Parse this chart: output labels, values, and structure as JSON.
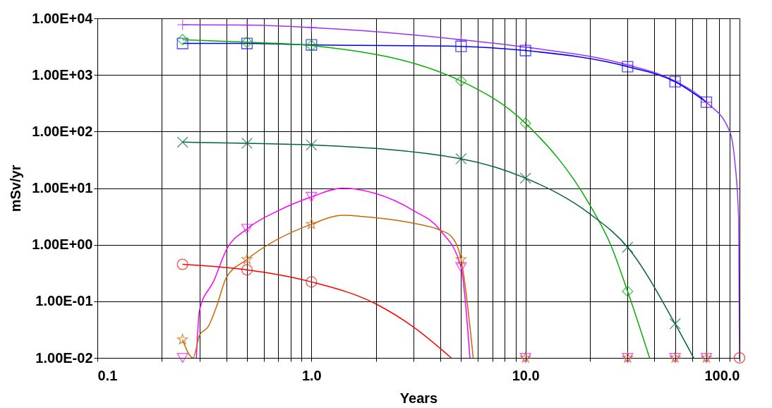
{
  "chart_data": {
    "type": "line",
    "xlabel": "Years",
    "ylabel": "mSv/yr",
    "log": "xy",
    "grid": true,
    "xlim": [
      0.1,
      100
    ],
    "ylim": [
      0.01,
      10000
    ],
    "xticks": [
      0.1,
      {
        "value": 0.2,
        "label": null
      },
      {
        "value": 0.3,
        "label": null
      },
      {
        "value": 0.4,
        "label": null
      },
      {
        "value": 0.5,
        "label": null
      },
      {
        "value": 0.6,
        "label": null
      },
      {
        "value": 0.7,
        "label": null
      },
      {
        "value": 0.8,
        "label": null
      },
      {
        "value": 0.9,
        "label": null
      },
      {
        "value": 1,
        "label": "1.0"
      },
      {
        "value": 2,
        "label": null
      },
      {
        "value": 3,
        "label": null
      },
      {
        "value": 4,
        "label": null
      },
      {
        "value": 5,
        "label": null
      },
      {
        "value": 6,
        "label": null
      },
      {
        "value": 7,
        "label": null
      },
      {
        "value": 8,
        "label": null
      },
      {
        "value": 9,
        "label": null
      },
      {
        "value": 10,
        "label": "10.0"
      },
      {
        "value": 20,
        "label": null
      },
      {
        "value": 30,
        "label": null
      },
      {
        "value": 40,
        "label": null
      },
      {
        "value": 50,
        "label": null
      },
      {
        "value": 60,
        "label": null
      },
      {
        "value": 70,
        "label": null
      },
      {
        "value": 80,
        "label": null
      },
      {
        "value": 90,
        "label": null
      },
      {
        "value": 100,
        "label": "100.0"
      }
    ],
    "yticks": [
      {
        "value": 0.01,
        "label": "1.00E-02"
      },
      {
        "value": 0.1,
        "label": "1.00E-01"
      },
      {
        "value": 1,
        "label": "1.00E+00"
      },
      {
        "value": 10,
        "label": "1.00E+01"
      },
      {
        "value": 100,
        "label": "1.00E+02"
      },
      {
        "value": 1000,
        "label": "1.00E+03"
      },
      {
        "value": 10000,
        "label": "1.00E+04"
      }
    ],
    "series": [
      {
        "color": "#9933ff",
        "marker": "none",
        "x": [
          0.25,
          0.5,
          1,
          5,
          10,
          30,
          50,
          70,
          90,
          95,
          99,
          100
        ],
        "values": [
          7700,
          7600,
          6900,
          4200,
          3100,
          1500,
          780,
          330,
          100,
          30,
          3,
          0.01
        ]
      },
      {
        "type": "scatter",
        "color": "#9933ff",
        "marker": "cross",
        "x": [
          0.25,
          0.5,
          1,
          5,
          10,
          30,
          50,
          70
        ],
        "values": [
          7700,
          7600,
          6900,
          4200,
          3100,
          1500,
          780,
          330
        ]
      },
      {
        "color": "#0000ff",
        "marker": "none",
        "x": [
          0.25,
          0.5,
          1,
          5,
          10,
          30,
          50,
          70
        ],
        "values": [
          3600,
          3600,
          3400,
          3200,
          2700,
          1400,
          760,
          330
        ]
      },
      {
        "type": "scatter",
        "color": "#0000ff",
        "marker": "square",
        "x": [
          0.25,
          0.5,
          1,
          5,
          10,
          30,
          50,
          70
        ],
        "values": [
          3600,
          3600,
          3400,
          3200,
          2700,
          1400,
          760,
          330
        ]
      },
      {
        "color": "#00b000",
        "marker": "none",
        "x": [
          0.25,
          0.5,
          1,
          5,
          10,
          20,
          25,
          30,
          38
        ],
        "values": [
          4200,
          3800,
          3300,
          780,
          140,
          5,
          1,
          0.15,
          0.01
        ]
      },
      {
        "type": "scatter",
        "color": "#00b000",
        "marker": "diamond",
        "x": [
          0.25,
          0.5,
          1,
          5,
          10,
          30
        ],
        "values": [
          4200,
          3800,
          3300,
          780,
          140,
          0.15
        ]
      },
      {
        "color": "#006633",
        "marker": "none",
        "x": [
          0.25,
          0.5,
          1,
          5,
          10,
          20,
          30,
          50,
          61
        ],
        "values": [
          65,
          62,
          58,
          33,
          15,
          3.5,
          0.9,
          0.04,
          0.01
        ]
      },
      {
        "type": "scatter",
        "color": "#006633",
        "marker": "x",
        "x": [
          0.25,
          0.5,
          1,
          5,
          10,
          30,
          50
        ],
        "values": [
          65,
          62,
          58,
          33,
          15,
          0.9,
          0.04
        ]
      },
      {
        "color": "#ff00ff",
        "marker": "none",
        "x": [
          0.29,
          0.3,
          0.35,
          0.4,
          0.5,
          0.7,
          1,
          1.4,
          2,
          3,
          4,
          5,
          5.5
        ],
        "values": [
          0.01,
          0.07,
          0.23,
          0.8,
          1.9,
          4,
          7,
          10,
          8,
          4,
          1.8,
          0.4,
          0.01
        ]
      },
      {
        "type": "scatter",
        "color": "#ff00ff",
        "marker": "triangle",
        "x": [
          0.25,
          0.5,
          1,
          5,
          10,
          30,
          50,
          70
        ],
        "values": [
          0.01,
          1.9,
          7,
          0.4,
          0.01,
          0.01,
          0.01,
          0.01
        ]
      },
      {
        "color": "#cc6600",
        "marker": "none",
        "x": [
          0.25,
          0.28,
          0.3,
          0.33,
          0.36,
          0.4,
          0.5,
          1,
          1.4,
          2,
          3,
          4,
          4.5,
          5,
          5.7
        ],
        "values": [
          0.021,
          0.01,
          0.025,
          0.036,
          0.08,
          0.26,
          0.55,
          2.3,
          3.3,
          3,
          2.4,
          1.8,
          1.4,
          0.55,
          0.01
        ]
      },
      {
        "type": "scatter",
        "color": "#cc6600",
        "marker": "star",
        "x": [
          0.25,
          0.5,
          1,
          5,
          10,
          30,
          50,
          70
        ],
        "values": [
          0.021,
          0.55,
          2.3,
          0.55,
          0.01,
          0.01,
          0.01,
          0.01
        ]
      },
      {
        "color": "#ff0000",
        "marker": "none",
        "x": [
          0.25,
          0.5,
          1,
          2,
          3,
          4.5
        ],
        "values": [
          0.45,
          0.36,
          0.22,
          0.09,
          0.035,
          0.01
        ]
      },
      {
        "type": "scatter",
        "color": "#ff0000",
        "marker": "circle",
        "x": [
          0.25,
          0.5,
          1,
          100
        ],
        "values": [
          0.45,
          0.36,
          0.22,
          0.01
        ]
      }
    ]
  }
}
